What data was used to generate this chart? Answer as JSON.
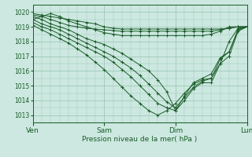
{
  "xlabel": "Pression niveau de la mer( hPa )",
  "background_color": "#cce8e0",
  "grid_color": "#a0c8b8",
  "line_color": "#1a5c28",
  "ylim": [
    1012.5,
    1020.5
  ],
  "xlim": [
    0,
    72
  ],
  "yticks": [
    1013,
    1014,
    1015,
    1016,
    1017,
    1018,
    1019,
    1020
  ],
  "xtick_positions": [
    0,
    24,
    48,
    72
  ],
  "xtick_labels": [
    "Ven",
    "Sam",
    "Dim",
    "Lun"
  ],
  "series": [
    {
      "x": [
        0,
        3,
        6,
        9,
        12,
        15,
        18,
        21,
        24,
        27,
        30,
        33,
        36,
        39,
        42,
        45,
        48,
        51,
        54,
        57,
        60,
        63,
        66,
        69,
        72
      ],
      "y": [
        1019.9,
        1019.8,
        1019.7,
        1019.6,
        1019.5,
        1019.4,
        1019.3,
        1019.2,
        1019.0,
        1018.9,
        1018.85,
        1018.85,
        1018.85,
        1018.85,
        1018.85,
        1018.85,
        1018.85,
        1018.85,
        1018.85,
        1018.85,
        1018.85,
        1018.85,
        1018.9,
        1019.0,
        1019.0
      ]
    },
    {
      "x": [
        0,
        3,
        6,
        9,
        12,
        15,
        18,
        21,
        24,
        27,
        30,
        33,
        36,
        39,
        42,
        45,
        48,
        51,
        54,
        57,
        60,
        63,
        66,
        69,
        72
      ],
      "y": [
        1019.8,
        1019.7,
        1019.5,
        1019.3,
        1019.1,
        1019.0,
        1018.9,
        1018.85,
        1018.8,
        1018.75,
        1018.7,
        1018.7,
        1018.7,
        1018.7,
        1018.7,
        1018.7,
        1018.7,
        1018.7,
        1018.7,
        1018.7,
        1018.7,
        1018.8,
        1018.9,
        1019.0,
        1019.0
      ]
    },
    {
      "x": [
        0,
        3,
        6,
        9,
        12,
        15,
        18,
        21,
        24,
        27,
        30,
        33,
        36,
        39,
        42,
        45,
        48,
        51,
        54,
        57,
        60,
        63,
        66,
        69,
        72
      ],
      "y": [
        1019.5,
        1019.7,
        1019.9,
        1019.7,
        1019.4,
        1019.2,
        1019.0,
        1018.8,
        1018.6,
        1018.5,
        1018.4,
        1018.4,
        1018.4,
        1018.4,
        1018.4,
        1018.4,
        1018.4,
        1018.4,
        1018.4,
        1018.4,
        1018.5,
        1018.7,
        1019.0,
        1019.0,
        1019.0
      ]
    },
    {
      "x": [
        0,
        3,
        6,
        9,
        12,
        15,
        18,
        21,
        24,
        27,
        30,
        33,
        36,
        39,
        42,
        45,
        48,
        51,
        54,
        57,
        60,
        63,
        66,
        69,
        72
      ],
      "y": [
        1019.7,
        1019.5,
        1019.2,
        1019.0,
        1018.8,
        1018.5,
        1018.2,
        1018.0,
        1017.8,
        1017.5,
        1017.2,
        1016.8,
        1016.4,
        1016.0,
        1015.4,
        1014.6,
        1013.3,
        1014.0,
        1014.8,
        1015.2,
        1015.2,
        1016.5,
        1018.0,
        1018.9,
        1019.0
      ]
    },
    {
      "x": [
        0,
        3,
        6,
        9,
        12,
        15,
        18,
        21,
        24,
        27,
        30,
        33,
        36,
        39,
        42,
        45,
        48,
        51,
        54,
        57,
        60,
        63,
        66,
        69,
        72
      ],
      "y": [
        1019.5,
        1019.2,
        1019.0,
        1018.8,
        1018.5,
        1018.2,
        1017.9,
        1017.6,
        1017.3,
        1017.0,
        1016.6,
        1016.2,
        1015.7,
        1015.1,
        1014.5,
        1013.9,
        1013.5,
        1014.2,
        1014.9,
        1015.3,
        1015.5,
        1016.8,
        1017.3,
        1018.8,
        1019.0
      ]
    },
    {
      "x": [
        0,
        3,
        6,
        9,
        12,
        15,
        18,
        21,
        24,
        27,
        30,
        33,
        36,
        39,
        42,
        45,
        48,
        51,
        54,
        57,
        60,
        63,
        66,
        69,
        72
      ],
      "y": [
        1019.3,
        1019.0,
        1018.8,
        1018.5,
        1018.2,
        1017.9,
        1017.6,
        1017.3,
        1017.0,
        1016.6,
        1016.1,
        1015.6,
        1015.0,
        1014.4,
        1013.8,
        1013.5,
        1013.3,
        1014.3,
        1015.2,
        1015.5,
        1015.8,
        1016.9,
        1017.3,
        1018.8,
        1019.0
      ]
    },
    {
      "x": [
        0,
        3,
        6,
        9,
        12,
        15,
        18,
        21,
        24,
        27,
        30,
        33,
        36,
        39,
        42,
        45,
        48,
        51,
        54,
        57,
        60,
        63,
        66,
        69,
        72
      ],
      "y": [
        1019.1,
        1018.8,
        1018.5,
        1018.2,
        1017.9,
        1017.5,
        1017.1,
        1016.6,
        1016.1,
        1015.5,
        1014.9,
        1014.3,
        1013.8,
        1013.3,
        1013.0,
        1013.3,
        1013.8,
        1014.5,
        1015.1,
        1015.4,
        1015.5,
        1016.5,
        1017.0,
        1018.7,
        1019.0
      ]
    }
  ]
}
